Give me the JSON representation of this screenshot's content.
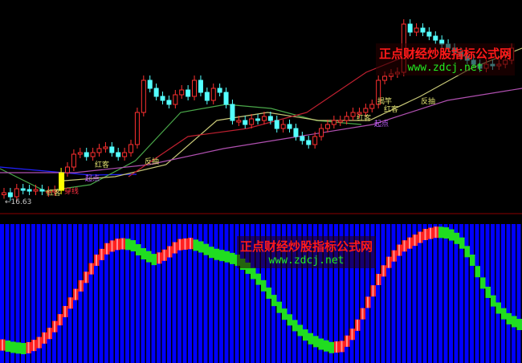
{
  "chart_data": {
    "type": "candlestick",
    "price_low_label": "←16.63",
    "closes": [
      17.03,
      16.83,
      17.23,
      17.19,
      17.15,
      17.19,
      17.11,
      17.11,
      17.15,
      18.03,
      18.31,
      18.95,
      19.03,
      18.83,
      19.03,
      19.23,
      19.31,
      19.03,
      18.83,
      19.03,
      19.43,
      21.03,
      22.63,
      22.23,
      21.83,
      21.63,
      21.43,
      21.91,
      22.15,
      21.83,
      22.63,
      22.03,
      21.63,
      22.23,
      22.03,
      21.43,
      20.63,
      20.63,
      20.43,
      20.71,
      20.63,
      20.83,
      20.63,
      20.23,
      20.43,
      20.23,
      19.83,
      19.63,
      19.43,
      19.83,
      20.23,
      20.43,
      20.63,
      20.63,
      20.83,
      21.03,
      21.03,
      21.23,
      21.43,
      22.63,
      22.83,
      22.95,
      23.03,
      25.43,
      25.03,
      25.23,
      25.03,
      24.83,
      24.63,
      24.43,
      24.23,
      24.03,
      23.83,
      23.63,
      23.43,
      23.23,
      23.43,
      23.35,
      23.43,
      23.63,
      24.23
    ],
    "moving_averages": [
      {
        "color": "#2020ff",
        "values": [
          18.31,
          18.11,
          17.91,
          17.95
        ]
      },
      {
        "color": "#4aa84a",
        "values": [
          18.23,
          17.11,
          17.43,
          18.63,
          21.03,
          21.43,
          21.23,
          20.63,
          20.43
        ]
      },
      {
        "color": "#c8c878",
        "values": [
          17.63,
          17.83,
          18.43,
          20.63,
          21.03,
          20.63,
          20.63,
          21.83,
          23.23,
          24.23
        ]
      },
      {
        "color": "#b050b0",
        "values": [
          18.03,
          18.03,
          18.43,
          19.23,
          19.83,
          20.43,
          21.63,
          22.23
        ]
      },
      {
        "color": "#c02030",
        "values": [
          17.83,
          19.83,
          20.23,
          21.03,
          23.03,
          24.23
        ]
      }
    ],
    "signals": [
      "红客",
      "穿线",
      "红客",
      "反抽",
      "起点",
      "红客",
      "红客",
      "揭竿",
      "起点",
      "反抽"
    ],
    "oscillator": {
      "range": [
        0,
        100
      ],
      "rising_color": "#ff2020",
      "falling_color": "#20dd20",
      "background_color": "#0000ff",
      "values": [
        9,
        7,
        6,
        10,
        18,
        30,
        45,
        60,
        75,
        85,
        88,
        87,
        80,
        75,
        80,
        87,
        88,
        85,
        80,
        78,
        75,
        68,
        58,
        45,
        33,
        23,
        15,
        10,
        7,
        8,
        20,
        40,
        60,
        75,
        85,
        90,
        95,
        97,
        96,
        90,
        75,
        55,
        40,
        30,
        25
      ]
    }
  },
  "watermark": {
    "title": "正点财经炒股指标公式网",
    "url": "www.zdcj.net"
  }
}
